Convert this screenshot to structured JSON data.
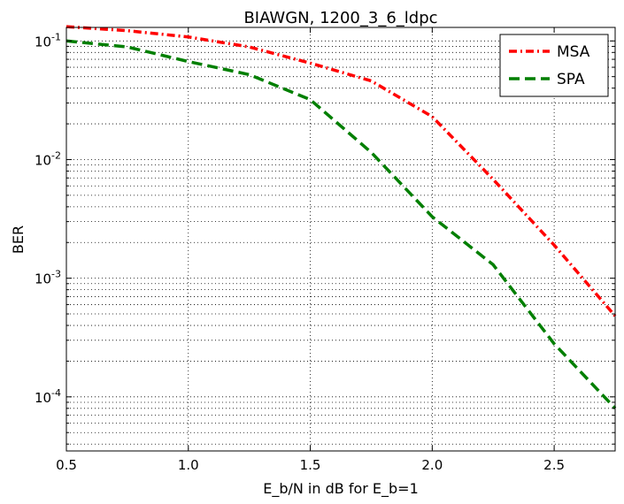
{
  "chart_data": {
    "type": "line",
    "title": "BIAWGN, 1200_3_6_ldpc",
    "xlabel": "E_b/N in dB for E_b=1",
    "ylabel": "BER",
    "xlim": [
      0.5,
      2.75
    ],
    "ylim": [
      3.5e-05,
      0.13
    ],
    "yscale": "log",
    "grid": true,
    "legend_position": "top-right",
    "x_ticks": [
      0.5,
      1.0,
      1.5,
      2.0,
      2.5
    ],
    "x_tick_labels": [
      "0.5",
      "1.0",
      "1.5",
      "2.0",
      "2.5"
    ],
    "y_ticks": [
      {
        "value": 0.1,
        "base": "10",
        "exp": "-1"
      },
      {
        "value": 0.01,
        "base": "10",
        "exp": "-2"
      },
      {
        "value": 0.001,
        "base": "10",
        "exp": "-3"
      },
      {
        "value": 0.0001,
        "base": "10",
        "exp": "-4"
      }
    ],
    "series": [
      {
        "name": "MSA",
        "color": "#ff0000",
        "style": "dashdot",
        "x": [
          0.5,
          0.75,
          1.0,
          1.25,
          1.5,
          1.75,
          2.0,
          2.25,
          2.5,
          2.75
        ],
        "y": [
          0.132,
          0.122,
          0.108,
          0.089,
          0.065,
          0.046,
          0.023,
          0.0068,
          0.0019,
          0.00048
        ]
      },
      {
        "name": "SPA",
        "color": "#007f00",
        "style": "dashed",
        "x": [
          0.5,
          0.75,
          1.0,
          1.25,
          1.5,
          1.75,
          2.0,
          2.25,
          2.5,
          2.75
        ],
        "y": [
          0.1,
          0.089,
          0.067,
          0.052,
          0.032,
          0.0115,
          0.0033,
          0.0013,
          0.00028,
          8e-05
        ]
      }
    ]
  }
}
